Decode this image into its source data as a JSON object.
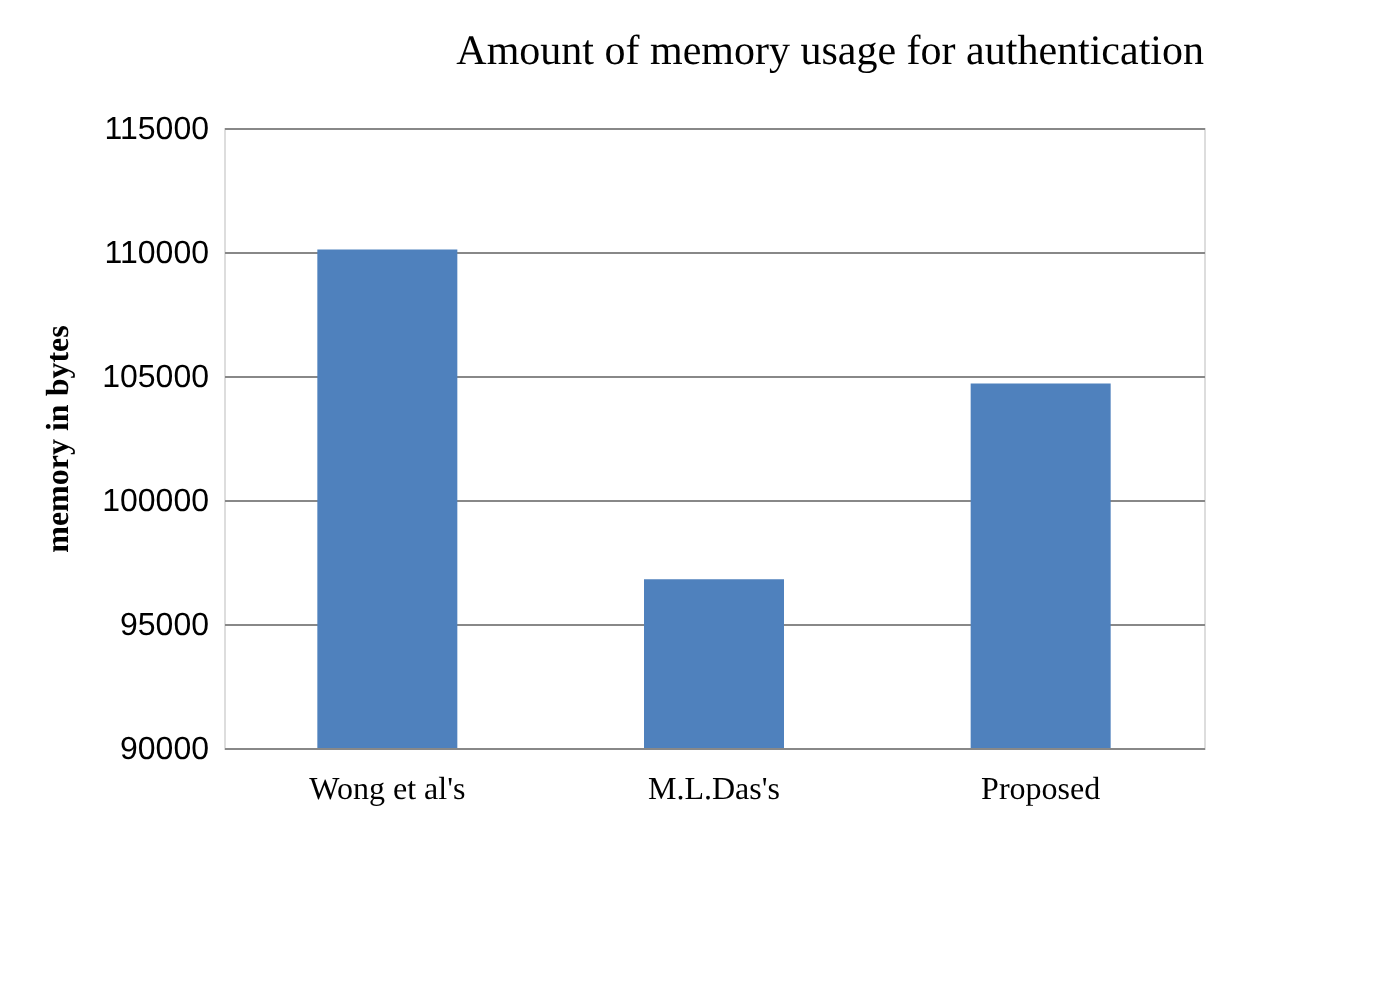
{
  "chart_data": {
    "type": "bar",
    "title": "Amount of memory usage for authentication",
    "ylabel": "memory in bytes",
    "categories": [
      "Wong et al's",
      "M.L.Das's",
      "Proposed"
    ],
    "values": [
      110100,
      96800,
      104700
    ],
    "color": "#4f81bd",
    "ylim": [
      90000,
      115000
    ],
    "yticks": [
      90000,
      95000,
      100000,
      105000,
      110000,
      115000
    ],
    "grid": "y"
  }
}
